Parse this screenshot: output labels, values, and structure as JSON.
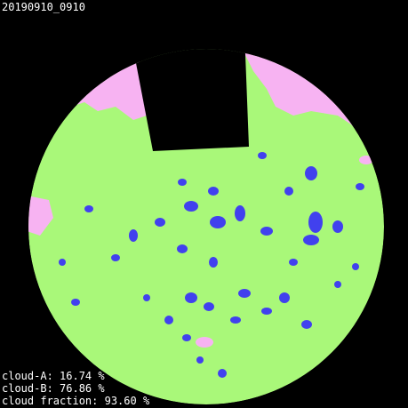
{
  "header": {
    "title": "20190910_0910"
  },
  "stats": {
    "lines": [
      "cloud-A: 16.74 %",
      "cloud-B: 76.86 %",
      "cloud fraction: 93.60 %"
    ]
  }
}
